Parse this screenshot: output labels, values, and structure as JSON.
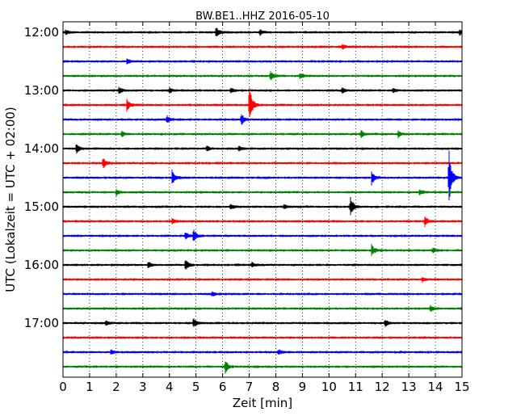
{
  "chart_data": {
    "type": "line",
    "title": "BW.BE1..HHZ 2016-05-10",
    "xlabel": "Zeit  [min]",
    "ylabel": "UTC (Lokalzeit = UTC + 02:00)",
    "xlim": [
      0,
      15
    ],
    "xticks": [
      "0",
      "1",
      "2",
      "3",
      "4",
      "5",
      "6",
      "7",
      "8",
      "9",
      "10",
      "11",
      "12",
      "13",
      "14",
      "15"
    ],
    "ytick_labels": [
      "12:00",
      "13:00",
      "14:00",
      "15:00",
      "16:00",
      "17:00"
    ],
    "grid": "vertical dotted",
    "trace_colors": [
      "#000000",
      "#ff0000",
      "#0000ff",
      "#008000"
    ],
    "traces": [
      {
        "start": "12:00",
        "events": [
          [
            5.75,
            7
          ],
          [
            0.1,
            3
          ],
          [
            7.4,
            4
          ],
          [
            14.9,
            4
          ]
        ]
      },
      {
        "start": "12:15",
        "events": [
          [
            10.5,
            3
          ]
        ]
      },
      {
        "start": "12:30",
        "events": [
          [
            2.4,
            3
          ]
        ]
      },
      {
        "start": "12:45",
        "events": [
          [
            7.8,
            6
          ],
          [
            8.9,
            4
          ]
        ]
      },
      {
        "start": "13:00",
        "events": [
          [
            2.1,
            4
          ],
          [
            4.0,
            3
          ],
          [
            6.3,
            4
          ],
          [
            10.5,
            4
          ],
          [
            12.4,
            3
          ]
        ]
      },
      {
        "start": "13:15",
        "events": [
          [
            7.0,
            26
          ],
          [
            2.4,
            8
          ]
        ]
      },
      {
        "start": "13:30",
        "events": [
          [
            3.9,
            5
          ],
          [
            6.7,
            8
          ]
        ]
      },
      {
        "start": "13:45",
        "events": [
          [
            2.2,
            4
          ],
          [
            11.2,
            5
          ],
          [
            12.6,
            4
          ]
        ]
      },
      {
        "start": "14:00",
        "events": [
          [
            0.5,
            7
          ],
          [
            5.4,
            3
          ],
          [
            6.6,
            3
          ]
        ]
      },
      {
        "start": "14:15",
        "events": [
          [
            1.5,
            7
          ]
        ]
      },
      {
        "start": "14:30",
        "events": [
          [
            14.5,
            38
          ],
          [
            4.1,
            10
          ],
          [
            11.6,
            9
          ]
        ]
      },
      {
        "start": "14:45",
        "events": [
          [
            2.0,
            4
          ],
          [
            13.4,
            4
          ]
        ]
      },
      {
        "start": "15:00",
        "events": [
          [
            10.8,
            14
          ],
          [
            6.3,
            3
          ],
          [
            8.3,
            3
          ]
        ]
      },
      {
        "start": "15:15",
        "events": [
          [
            13.6,
            7
          ],
          [
            4.1,
            3
          ]
        ]
      },
      {
        "start": "15:30",
        "events": [
          [
            4.9,
            8
          ],
          [
            4.6,
            5
          ]
        ]
      },
      {
        "start": "15:45",
        "events": [
          [
            11.6,
            8
          ],
          [
            13.9,
            3
          ]
        ]
      },
      {
        "start": "16:00",
        "events": [
          [
            4.6,
            8
          ],
          [
            3.2,
            4
          ],
          [
            7.1,
            3
          ]
        ]
      },
      {
        "start": "16:15",
        "events": [
          [
            13.5,
            3
          ]
        ]
      },
      {
        "start": "16:30",
        "events": [
          [
            5.6,
            3
          ]
        ]
      },
      {
        "start": "16:45",
        "events": [
          [
            13.8,
            4
          ]
        ]
      },
      {
        "start": "17:00",
        "events": [
          [
            4.9,
            6
          ],
          [
            12.1,
            5
          ],
          [
            1.6,
            3
          ]
        ]
      },
      {
        "start": "17:15",
        "events": []
      },
      {
        "start": "17:30",
        "events": [
          [
            1.8,
            3
          ],
          [
            8.1,
            3
          ]
        ]
      },
      {
        "start": "17:45",
        "events": [
          [
            6.1,
            8
          ]
        ]
      }
    ]
  }
}
